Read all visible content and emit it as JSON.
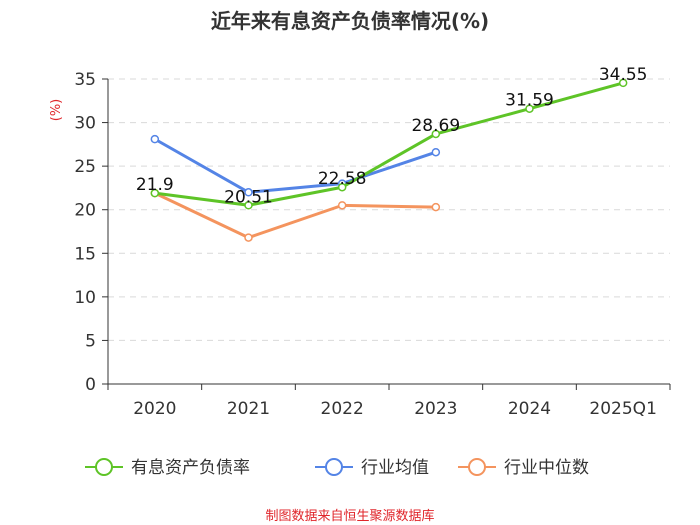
{
  "chart_data": {
    "type": "line",
    "title": "近年来有息资产负债率情况(%)",
    "unit": "(%)",
    "categories": [
      "2020",
      "2021",
      "2022",
      "2023",
      "2024",
      "2025Q1"
    ],
    "y_ticks": [
      "0",
      "5",
      "10",
      "15",
      "20",
      "25",
      "30",
      "35"
    ],
    "ylim": [
      0,
      35
    ],
    "grid": true,
    "legend_position": "bottom",
    "series": [
      {
        "name": "有息资产负债率",
        "color": "#5ec427",
        "values": [
          21.9,
          20.51,
          22.58,
          28.69,
          31.59,
          34.55
        ],
        "labels": [
          "21.9",
          "20.51",
          "22.58",
          "28.69",
          "31.59",
          "34.55"
        ]
      },
      {
        "name": "行业均值",
        "color": "#5484e6",
        "values": [
          28.1,
          22.0,
          23.0,
          26.6,
          null,
          null
        ]
      },
      {
        "name": "行业中位数",
        "color": "#f4945e",
        "values": [
          21.9,
          16.8,
          20.5,
          20.3,
          null,
          null
        ]
      }
    ]
  },
  "source": "制图数据来自恒生聚源数据库"
}
